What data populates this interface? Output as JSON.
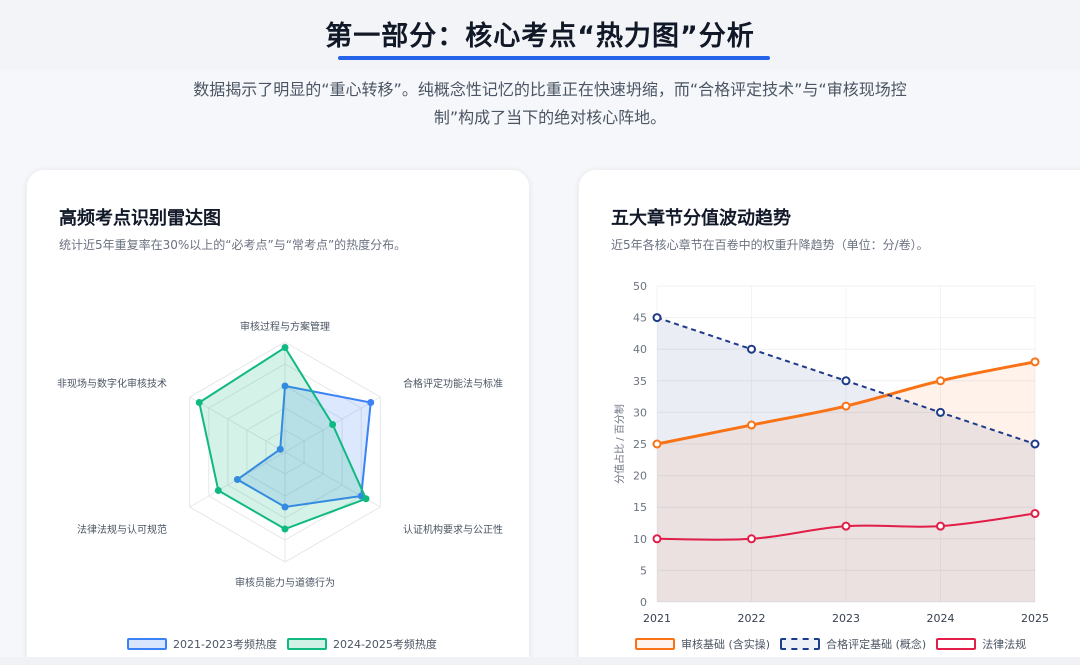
{
  "header": {
    "title": "第一部分：核心考点“热力图”分析",
    "lead": "数据揭示了明显的“重心转移”。纯概念性记忆的比重正在快速坍缩，而“合格评定技术”与“审核现场控制”构成了当下的绝对核心阵地。"
  },
  "radar_card": {
    "title": "高频考点识别雷达图",
    "subtitle": "统计近5年重复率在30%以上的“必考点”与“常考点”的热度分布。"
  },
  "line_card": {
    "title": "五大章节分值波动趋势",
    "subtitle": "近5年各核心章节在百卷中的权重升降趋势（单位：分/卷）。"
  },
  "colors": {
    "blue": "#3b82f6",
    "green": "#10b981",
    "orange": "#f97316",
    "navy": "#1e3a8a",
    "red": "#e11d48"
  },
  "chart_data": [
    {
      "type": "radar",
      "axes": [
        "审核过程与方案管理",
        "合格评定功能法与标准",
        "认证机构要求与公正性",
        "审核员能力与道德行为",
        "法律法规与认可规范",
        "非现场与数字化审核技术"
      ],
      "max": 100,
      "rings": 5,
      "series": [
        {
          "name": "2021-2023考频热度",
          "color": "#3b82f6",
          "values": [
            60,
            90,
            80,
            50,
            50,
            5
          ]
        },
        {
          "name": "2024-2025考频热度",
          "color": "#10b981",
          "values": [
            95,
            50,
            85,
            70,
            70,
            90
          ]
        }
      ]
    },
    {
      "type": "line",
      "x": [
        "2021",
        "2022",
        "2023",
        "2024",
        "2025"
      ],
      "ylabel": "分值占比 / 百分制",
      "ylim": [
        0,
        50
      ],
      "yticks": [
        0,
        5,
        10,
        15,
        20,
        25,
        30,
        35,
        40,
        45,
        50
      ],
      "grid": true,
      "series": [
        {
          "name": "审核基础 (含实操)",
          "color": "#f97316",
          "style": "solid",
          "fill": true,
          "values": [
            25,
            28,
            31,
            35,
            38
          ]
        },
        {
          "name": "合格评定基础 (概念)",
          "color": "#1e3a8a",
          "style": "dashed",
          "fill": true,
          "values": [
            45,
            40,
            35,
            30,
            25
          ]
        },
        {
          "name": "法律法规",
          "color": "#e11d48",
          "style": "solid",
          "fill": false,
          "values": [
            10,
            10,
            12,
            12,
            14
          ]
        }
      ]
    }
  ]
}
